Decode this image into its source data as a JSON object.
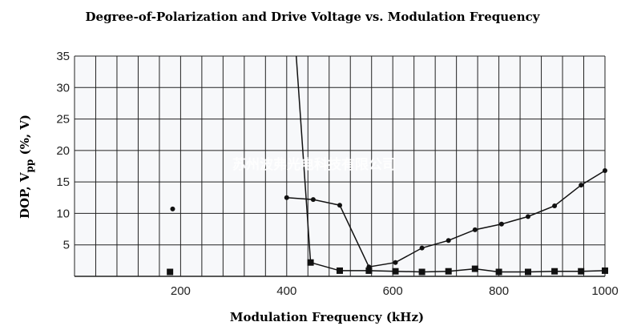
{
  "chart_data": {
    "type": "line",
    "title": "Degree-of-Polarization and Drive Voltage vs. Modulation Frequency",
    "xlabel": "Modulation Frequency (kHz)",
    "ylabel_main": "DOP, V",
    "ylabel_sub": "pp",
    "ylabel_tail": " (%, V)",
    "xlim": [
      0,
      1000
    ],
    "ylim": [
      0,
      35
    ],
    "xticks": [
      200,
      400,
      600,
      800,
      1000
    ],
    "yticks": [
      5,
      10,
      15,
      20,
      25,
      30,
      35
    ],
    "grid": true,
    "series": [
      {
        "marker": "circle",
        "points": [
          [
            185,
            10.7
          ],
          [
            400,
            12.5
          ],
          [
            450,
            12.2
          ],
          [
            500,
            11.3
          ],
          [
            555,
            1.5
          ],
          [
            605,
            2.2
          ],
          [
            655,
            4.5
          ],
          [
            705,
            5.7
          ],
          [
            755,
            7.4
          ],
          [
            805,
            8.3
          ],
          [
            855,
            9.5
          ],
          [
            905,
            11.2
          ],
          [
            955,
            14.5
          ],
          [
            1000,
            16.8
          ]
        ],
        "connect_from": 1
      },
      {
        "marker": "square",
        "points": [
          [
            180,
            0.7
          ],
          [
            418,
            35
          ],
          [
            445,
            2.2
          ],
          [
            500,
            0.9
          ],
          [
            555,
            0.9
          ],
          [
            605,
            0.8
          ],
          [
            655,
            0.7
          ],
          [
            705,
            0.8
          ],
          [
            755,
            1.2
          ],
          [
            800,
            0.7
          ],
          [
            855,
            0.7
          ],
          [
            905,
            0.8
          ],
          [
            955,
            0.8
          ],
          [
            1000,
            0.9
          ]
        ],
        "connect_from": 1,
        "unmarked": [
          1
        ]
      }
    ],
    "watermark": "苏州波弗光电科技有限公司",
    "colors": {
      "line": "#111111",
      "grid": "#222222",
      "plot_bg": "#f7f8fa"
    }
  }
}
